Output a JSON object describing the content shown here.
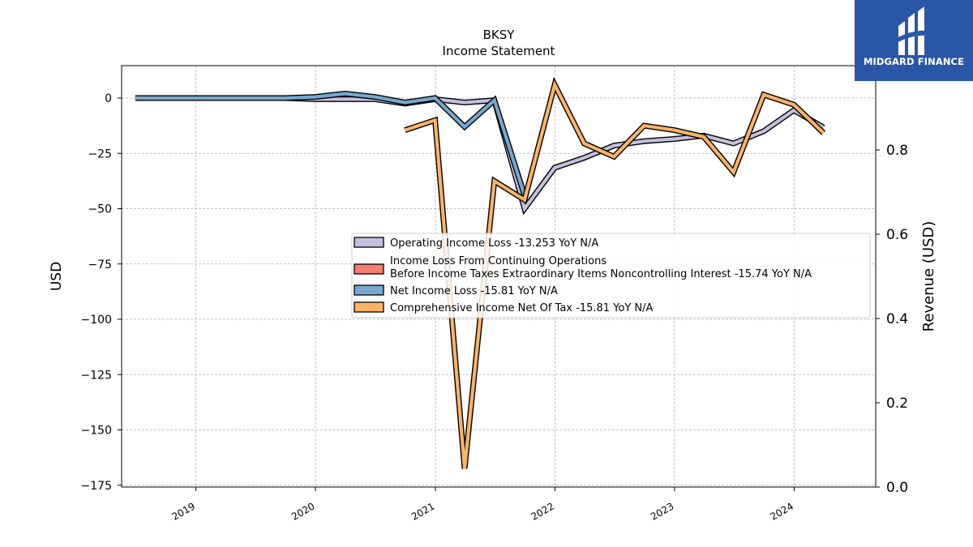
{
  "chart_data": {
    "type": "line",
    "title": "BKSY",
    "subtitle": "Income Statement",
    "ylabel": "USD",
    "ylabel_right": "Revenue (USD)",
    "ylim": [
      -176,
      15
    ],
    "ylim_right": [
      0,
      1
    ],
    "y_ticks": [
      0,
      -25,
      -50,
      -75,
      -100,
      -125,
      -150,
      -175
    ],
    "y_tick_labels": [
      "0",
      "−25",
      "−50",
      "−75",
      "−100",
      "−125",
      "−150",
      "−175"
    ],
    "y_right_ticks": [
      0.0,
      0.2,
      0.4,
      0.6,
      0.8
    ],
    "y_right_tick_labels": [
      "0.0",
      "0.2",
      "0.4",
      "0.6",
      "0.8"
    ],
    "x_tick_labels": [
      "2019",
      "2020",
      "2021",
      "2022",
      "2023",
      "2024"
    ],
    "x_range": [
      "2018-03-01",
      "2024-07-01"
    ],
    "grid": true,
    "legend_placement": "center-right",
    "series": [
      {
        "name": "Operating Income Loss  -13.253 YoY N/A",
        "color": "#c5bfdd",
        "x": [
          "2018-06-30",
          "2019-03-31",
          "2019-06-30",
          "2019-09-30",
          "2019-12-31",
          "2020-03-31",
          "2020-06-30",
          "2020-09-30",
          "2020-12-31",
          "2021-03-31",
          "2021-06-30",
          "2021-09-30",
          "2021-12-31",
          "2022-03-31",
          "2022-06-30",
          "2022-09-30",
          "2022-12-31",
          "2023-03-31",
          "2023-06-30",
          "2023-09-30",
          "2023-12-31",
          "2024-03-31"
        ],
        "values": [
          0,
          0,
          0,
          0,
          -0.5,
          -0.5,
          -0.5,
          -2.5,
          -0.5,
          -2,
          -1,
          -50,
          -31.5,
          -27,
          -21.5,
          -19.5,
          -18.5,
          -17,
          -20.5,
          -15,
          -5.5,
          -13.3
        ]
      },
      {
        "name": "Income Loss From Continuing Operations\nBefore Income Taxes Extraordinary Items Noncontrolling Interest  -15.74 YoY N/A",
        "color": "#f47e6f",
        "x": [],
        "values": []
      },
      {
        "name": "Net Income Loss  -15.81 YoY N/A",
        "color": "#76a8cf",
        "x": [
          "2018-06-30",
          "2019-03-31",
          "2019-06-30",
          "2019-09-30",
          "2019-12-31",
          "2020-03-31",
          "2020-06-30",
          "2020-09-30",
          "2020-12-31",
          "2021-03-31",
          "2021-06-30",
          "2021-09-30"
        ],
        "values": [
          0,
          0,
          0,
          0,
          0.5,
          2,
          0.5,
          -2,
          0,
          -13,
          -1,
          -44
        ]
      },
      {
        "name": "Comprehensive Income Net Of Tax  -15.81 YoY N/A",
        "color": "#fbb368",
        "x": [
          "2020-09-30",
          "2020-12-31",
          "2021-03-31",
          "2021-06-30",
          "2021-09-30",
          "2021-12-31",
          "2022-03-31",
          "2022-06-30",
          "2022-09-30",
          "2022-12-31",
          "2023-03-31",
          "2023-06-30",
          "2023-09-30",
          "2023-12-31",
          "2024-03-31"
        ],
        "values": [
          -14.5,
          -10,
          -167.5,
          -37.5,
          -46,
          6,
          -20.5,
          -26.5,
          -12.5,
          -14.5,
          -17.5,
          -33.5,
          1.5,
          -3,
          -15.8
        ]
      }
    ]
  },
  "logo": {
    "text": "MIDGARD FINANCE",
    "bg_color": "#2a56a8"
  }
}
